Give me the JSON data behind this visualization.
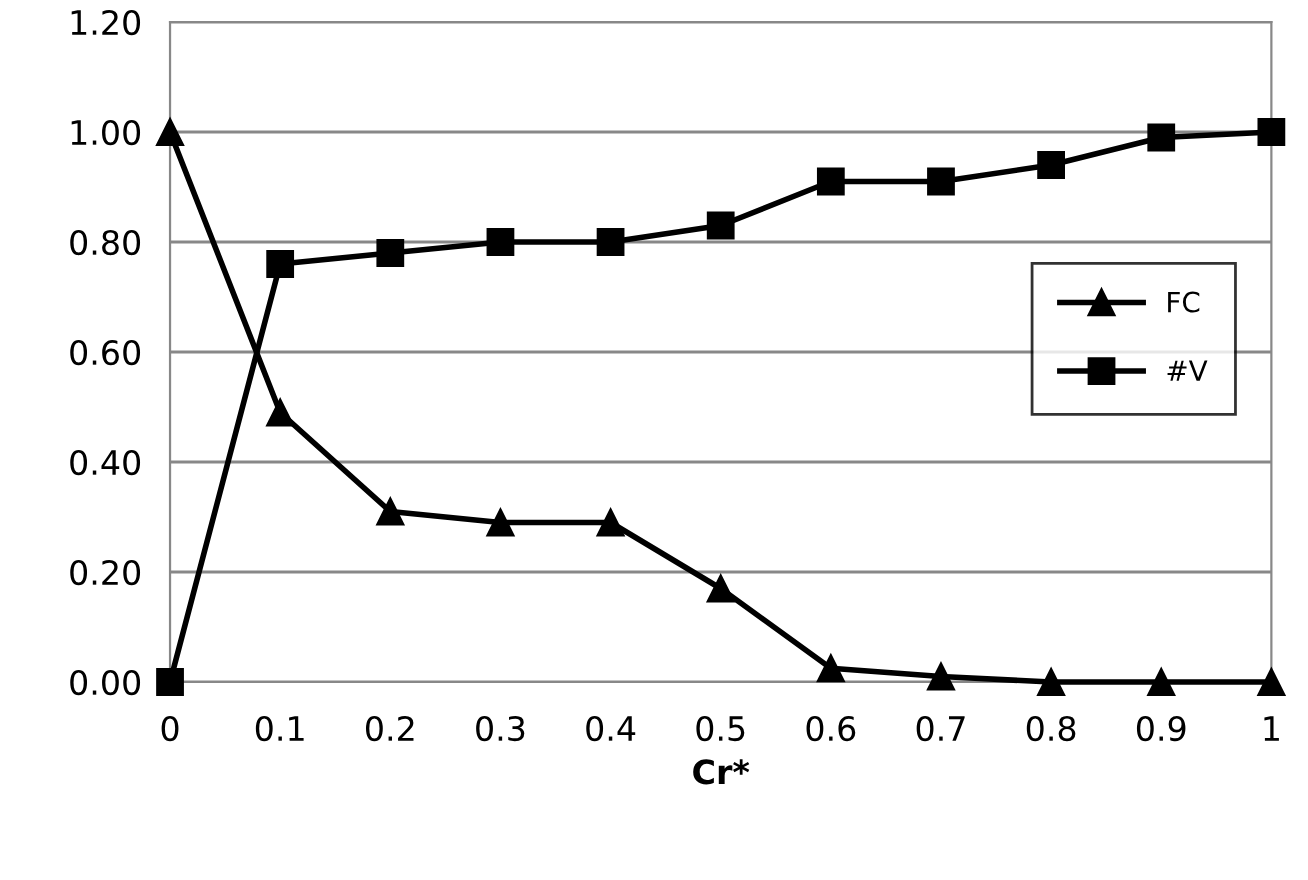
{
  "chart_data": {
    "type": "line",
    "xlabel": "Cr*",
    "categories": [
      "0",
      "0.1",
      "0.2",
      "0.3",
      "0.4",
      "0.5",
      "0.6",
      "0.7",
      "0.8",
      "0.9",
      "1"
    ],
    "series": [
      {
        "name": "FC",
        "color": "#000000",
        "marker": "triangle",
        "values": [
          1.0,
          0.49,
          0.31,
          0.29,
          0.29,
          0.17,
          0.025,
          0.01,
          0.0,
          0.0,
          0.0
        ]
      },
      {
        "name": "#V",
        "color": "#000000",
        "marker": "square",
        "values": [
          0.0,
          0.76,
          0.78,
          0.8,
          0.8,
          0.83,
          0.91,
          0.91,
          0.94,
          0.99,
          1.0
        ]
      }
    ],
    "ylim": [
      0,
      1.2
    ],
    "yticks": [
      {
        "value": 0,
        "label": "0.00"
      },
      {
        "value": 0.2,
        "label": "0.20"
      },
      {
        "value": 0.4,
        "label": "0.40"
      },
      {
        "value": 0.6,
        "label": "0.60"
      },
      {
        "value": 0.8,
        "label": "0.80"
      },
      {
        "value": 1.0,
        "label": "1.00"
      },
      {
        "value": 1.2,
        "label": "1.20"
      }
    ],
    "grid": "y",
    "legend": "right",
    "line_style": "solid"
  }
}
